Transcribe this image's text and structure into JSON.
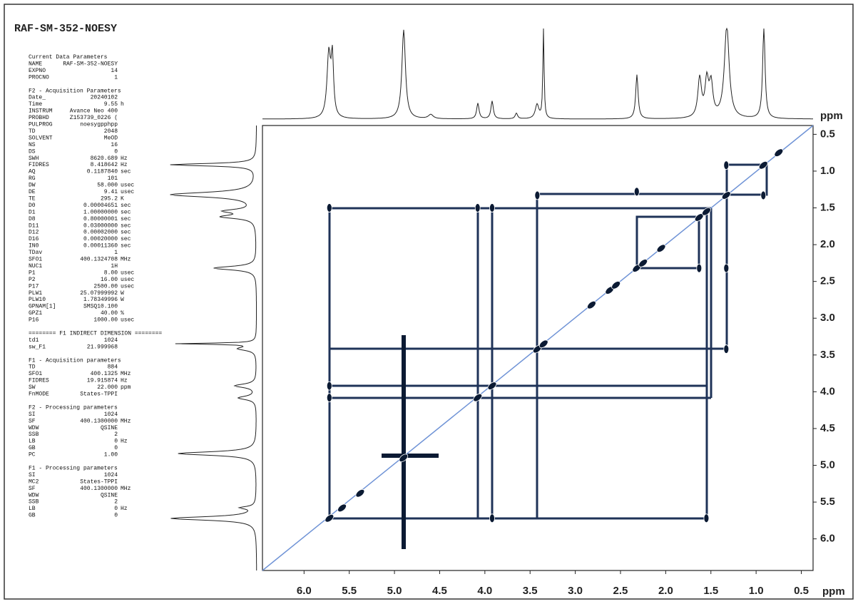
{
  "title": "RAF-SM-352-NOESY",
  "parameters": [
    {
      "heading": "Current Data Parameters",
      "rows": [
        [
          "NAME",
          "RAF-SM-352-NOESY"
        ],
        [
          "EXPNO",
          "14"
        ],
        [
          "PROCNO",
          "1"
        ]
      ]
    },
    {
      "heading": "F2 - Acquisition Parameters",
      "rows": [
        [
          "Date_",
          "20240102"
        ],
        [
          "Time",
          "9.55",
          "h"
        ],
        [
          "INSTRUM",
          "Avance Neo 400"
        ],
        [
          "PROBHD",
          "Z153739_0226 ("
        ],
        [
          "PULPROG",
          "noesygpphpp"
        ],
        [
          "TD",
          "2048"
        ],
        [
          "SOLVENT",
          "MeOD"
        ],
        [
          "NS",
          "16"
        ],
        [
          "DS",
          "0"
        ],
        [
          "SWH",
          "8620.689",
          "Hz"
        ],
        [
          "FIDRES",
          "8.418642",
          "Hz"
        ],
        [
          "AQ",
          "0.1187840",
          "sec"
        ],
        [
          "RG",
          "101"
        ],
        [
          "DW",
          "58.000",
          "usec"
        ],
        [
          "DE",
          "9.41",
          "usec"
        ],
        [
          "TE",
          "295.2",
          "K"
        ],
        [
          "D0",
          "0.00004651",
          "sec"
        ],
        [
          "D1",
          "1.00000000",
          "sec"
        ],
        [
          "D8",
          "0.80000001",
          "sec"
        ],
        [
          "D11",
          "0.03000000",
          "sec"
        ],
        [
          "D12",
          "0.00002000",
          "sec"
        ],
        [
          "D16",
          "0.00020000",
          "sec"
        ],
        [
          "IN0",
          "0.00011360",
          "sec"
        ],
        [
          "TDav",
          "1"
        ],
        [
          "SFO1",
          "400.1324708",
          "MHz"
        ],
        [
          "NUC1",
          "1H"
        ],
        [
          "P1",
          "8.00",
          "usec"
        ],
        [
          "P2",
          "16.00",
          "usec"
        ],
        [
          "P17",
          "2500.00",
          "usec"
        ],
        [
          "PLW1",
          "25.07999992",
          "W"
        ],
        [
          "PLW10",
          "1.78349996",
          "W"
        ],
        [
          "GPNAM[1]",
          "SMSQ10.100"
        ],
        [
          "GPZ1",
          "40.00",
          "%"
        ],
        [
          "P16",
          "1000.00",
          "usec"
        ]
      ]
    },
    {
      "heading": "======== F1 INDIRECT DIMENSION ========",
      "rows": [
        [
          "td1",
          "1024"
        ],
        [
          "sw_F1",
          "21.999968"
        ]
      ]
    },
    {
      "heading": "F1 - Acquisition parameters",
      "rows": [
        [
          "TD",
          "884"
        ],
        [
          "SFO1",
          "400.1325",
          "MHz"
        ],
        [
          "FIDRES",
          "19.915874",
          "Hz"
        ],
        [
          "SW",
          "22.000",
          "ppm"
        ],
        [
          "FnMODE",
          "States-TPPI"
        ]
      ]
    },
    {
      "heading": "F2 - Processing parameters",
      "rows": [
        [
          "SI",
          "1024"
        ],
        [
          "SF",
          "400.1300000",
          "MHz"
        ],
        [
          "WDW",
          "QSINE"
        ],
        [
          "SSB",
          "2"
        ],
        [
          "LB",
          "0",
          "Hz"
        ],
        [
          "GB",
          "0"
        ],
        [
          "PC",
          "1.00"
        ]
      ]
    },
    {
      "heading": "F1 - Processing parameters",
      "rows": [
        [
          "SI",
          "1024"
        ],
        [
          "MC2",
          "States-TPPI"
        ],
        [
          "SF",
          "400.1300000",
          "MHz"
        ],
        [
          "WDW",
          "QSINE"
        ],
        [
          "SSB",
          "2"
        ],
        [
          "LB",
          "0",
          "Hz"
        ],
        [
          "GB",
          "0"
        ]
      ]
    }
  ],
  "chart_data": {
    "type": "scatter",
    "x_label": "ppm",
    "y_label": "ppm",
    "xlim": [
      6.46,
      0.37
    ],
    "ylim": [
      0.38,
      6.43
    ],
    "xticks": [
      {
        "value": 6,
        "label": "6.0"
      },
      5.5,
      {
        "value": 5,
        "label": "5.0"
      },
      4.5,
      {
        "value": 4,
        "label": "4.0"
      },
      3.5,
      {
        "value": 3,
        "label": "3.0"
      },
      2.5,
      {
        "value": 2,
        "label": "2.0"
      },
      1.5,
      {
        "value": 1,
        "label": "1.0"
      },
      0.5
    ],
    "yticks": [
      0.5,
      {
        "value": 1,
        "label": "1.0"
      },
      1.5,
      {
        "value": 2,
        "label": "2.0"
      },
      2.5,
      {
        "value": 3,
        "label": "3.0"
      },
      3.5,
      {
        "value": 4,
        "label": "4.0"
      },
      4.5,
      {
        "value": 5,
        "label": "5.0"
      },
      5.5,
      {
        "value": 6,
        "label": "6.0"
      }
    ],
    "x": [
      5.72,
      5.58,
      5.38,
      4.9,
      4.08,
      3.92,
      3.42,
      3.35,
      2.82,
      2.62,
      2.55,
      2.32,
      2.25,
      2.05,
      1.63,
      1.55,
      1.33,
      0.92,
      0.75,
      5.72,
      5.72,
      5.72,
      3.92,
      1.55,
      4.08,
      1.33,
      1.33,
      0.92,
      1.33,
      2.32,
      3.42,
      1.63,
      3.92
    ],
    "y": [
      5.72,
      5.58,
      5.38,
      4.9,
      4.08,
      3.92,
      3.42,
      3.35,
      2.82,
      2.62,
      2.55,
      2.32,
      2.25,
      2.05,
      1.63,
      1.55,
      1.33,
      0.92,
      0.75,
      1.5,
      4.08,
      3.92,
      5.72,
      5.72,
      1.5,
      3.42,
      0.92,
      1.33,
      2.32,
      1.28,
      1.33,
      2.32,
      1.5
    ],
    "color": "#0b1a33",
    "diagonal_color": "#6f93d6",
    "box_color": "#1f3358"
  }
}
